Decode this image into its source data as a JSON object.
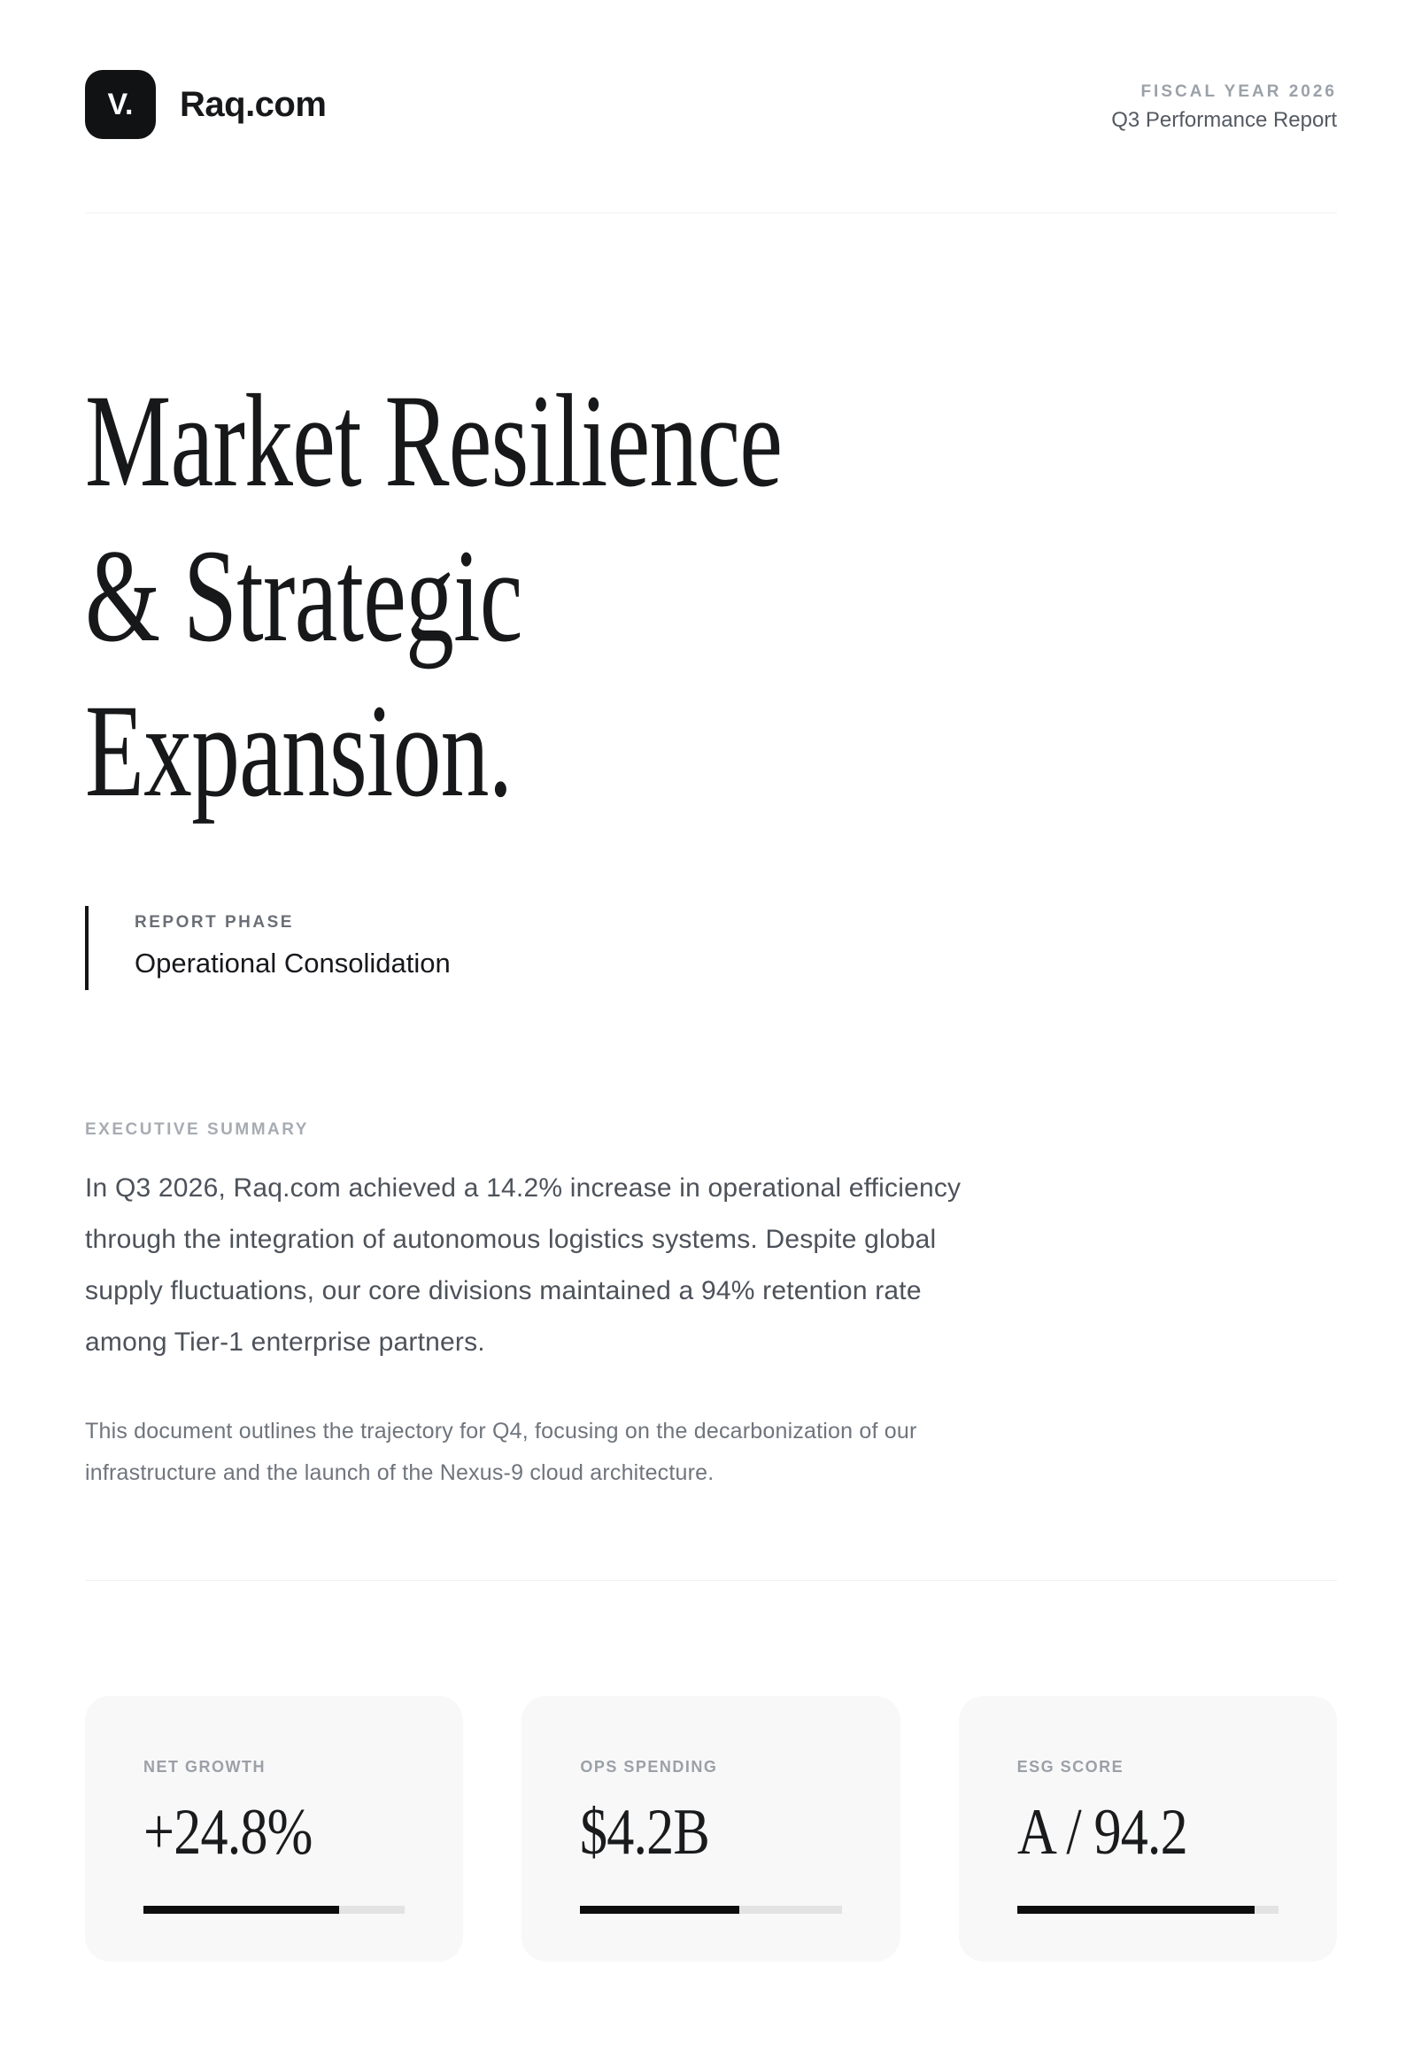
{
  "header": {
    "logo_mark": "V.",
    "brand": "Raq.com",
    "eyebrow": "FISCAL YEAR 2026",
    "subtitle": "Q3 Performance Report"
  },
  "hero": {
    "title_lines": [
      "Market Resilience",
      "& Strategic",
      "Expansion."
    ],
    "phase_label": "REPORT PHASE",
    "phase_value": "Operational Consolidation"
  },
  "summary": {
    "label": "EXECUTIVE SUMMARY",
    "lead_lines": [
      "In Q3 2026, Raq.com achieved a 14.2% increase in operational efficiency",
      "through the integration of autonomous logistics systems. Despite global",
      "supply fluctuations, our core divisions maintained a 94% retention rate",
      "among Tier-1 enterprise partners."
    ],
    "note_lines": [
      "This document outlines the trajectory for Q4, focusing on the decarbonization of our",
      "infrastructure and the launch of the Nexus-9 cloud architecture."
    ]
  },
  "stats": [
    {
      "label": "NET GROWTH",
      "value": "+24.8%",
      "progress": 75
    },
    {
      "label": "OPS SPENDING",
      "value": "$4.2B",
      "progress": 61
    },
    {
      "label": "ESG SCORE",
      "value": "A / 94.2",
      "progress": 91
    }
  ],
  "colors": {
    "ink": "#17181a",
    "body_text": "#4d525a",
    "soft_text": "#6f757d",
    "faint_text": "#9ba1a9",
    "card_bg": "#f8f8f9",
    "track": "#e3e3e4",
    "bar_fill": "#0d0d0d",
    "divider": "#f0f1f2"
  }
}
